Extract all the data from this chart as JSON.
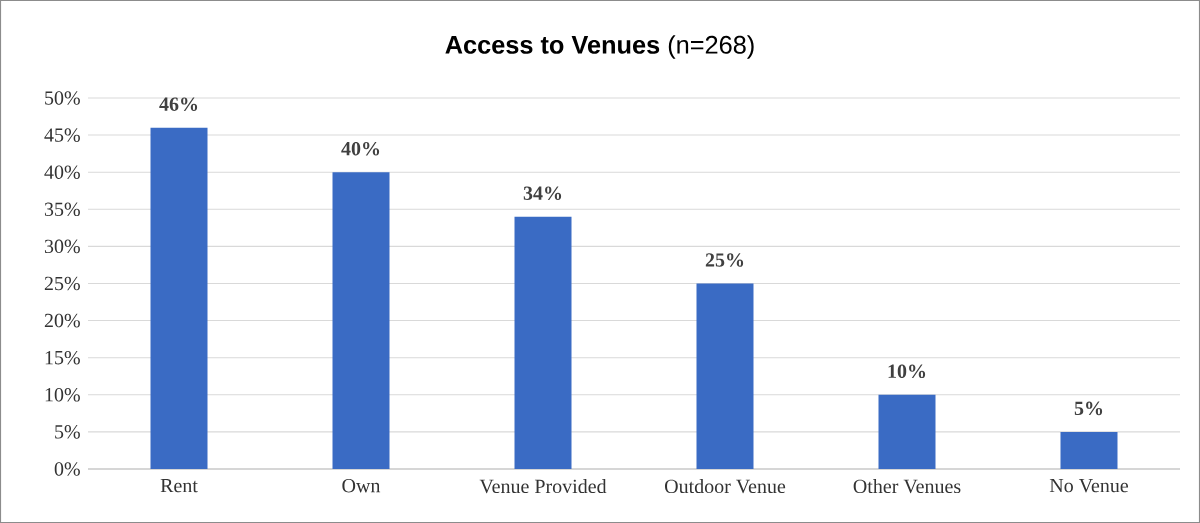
{
  "chart_data": {
    "type": "bar",
    "title": "**Access to Venues** (n=268)",
    "categories": [
      "Rent",
      "Own",
      "Venue Provided",
      "Outdoor Venue",
      "Other Venues",
      "No Venue"
    ],
    "values": [
      46,
      40,
      34,
      25,
      10,
      5
    ],
    "value_labels": [
      "46%",
      "40%",
      "34%",
      "25%",
      "10%",
      "5%"
    ],
    "color": "#3a6bc4",
    "ylim": [
      0,
      50
    ],
    "yticks": [
      {
        "value": 0,
        "label": "0%"
      },
      {
        "value": 5,
        "label": "5%"
      },
      {
        "value": 10,
        "label": "10%"
      },
      {
        "value": 15,
        "label": "15%"
      },
      {
        "value": 20,
        "label": "20%"
      },
      {
        "value": 25,
        "label": "25%"
      },
      {
        "value": 30,
        "label": "30%"
      },
      {
        "value": 35,
        "label": "35%"
      },
      {
        "value": 40,
        "label": "40%"
      },
      {
        "value": 45,
        "label": "45%"
      },
      {
        "value": 50,
        "label": "50%"
      }
    ],
    "grid": "y"
  }
}
